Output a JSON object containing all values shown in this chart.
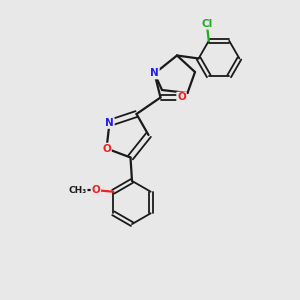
{
  "background_color": "#e8e8e8",
  "bond_color": "#1a1a1a",
  "atom_colors": {
    "N": "#2020ee",
    "O": "#ee2020",
    "Cl": "#22aa22",
    "C": "#1a1a1a"
  },
  "figsize": [
    3.0,
    3.0
  ],
  "dpi": 100
}
